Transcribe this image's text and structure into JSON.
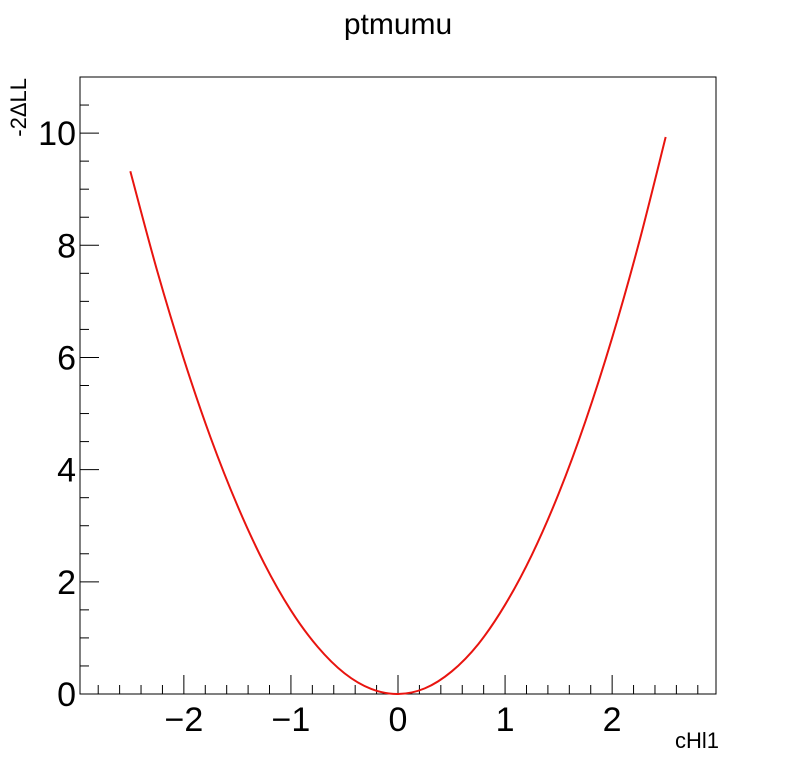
{
  "chart_data": {
    "type": "line",
    "title": "ptmumu",
    "xlabel": "cHl1",
    "ylabel": "-2ΔLL",
    "xlim": [
      -2.97,
      2.97
    ],
    "ylim": [
      0,
      11
    ],
    "x_ticks": [
      -2,
      -1,
      0,
      1,
      2
    ],
    "x_tick_labels": [
      "−2",
      "−1",
      "0",
      "1",
      "2"
    ],
    "y_ticks": [
      0,
      2,
      4,
      6,
      8,
      10
    ],
    "y_tick_labels": [
      "0",
      "2",
      "4",
      "6",
      "8",
      "10"
    ],
    "grid": false,
    "series": [
      {
        "color": "#e8140f",
        "x": [
          -2.5,
          -2.25,
          -2.0,
          -1.75,
          -1.5,
          -1.25,
          -1.0,
          -0.75,
          -0.5,
          -0.25,
          0.0,
          0.25,
          0.5,
          0.75,
          1.0,
          1.25,
          1.5,
          1.75,
          2.0,
          2.25,
          2.5
        ],
        "y": [
          9.32,
          7.55,
          5.97,
          4.57,
          3.36,
          2.33,
          1.49,
          0.84,
          0.37,
          0.09,
          0.0,
          0.1,
          0.4,
          0.89,
          1.59,
          2.48,
          3.57,
          4.86,
          6.35,
          8.04,
          9.93
        ]
      }
    ]
  }
}
